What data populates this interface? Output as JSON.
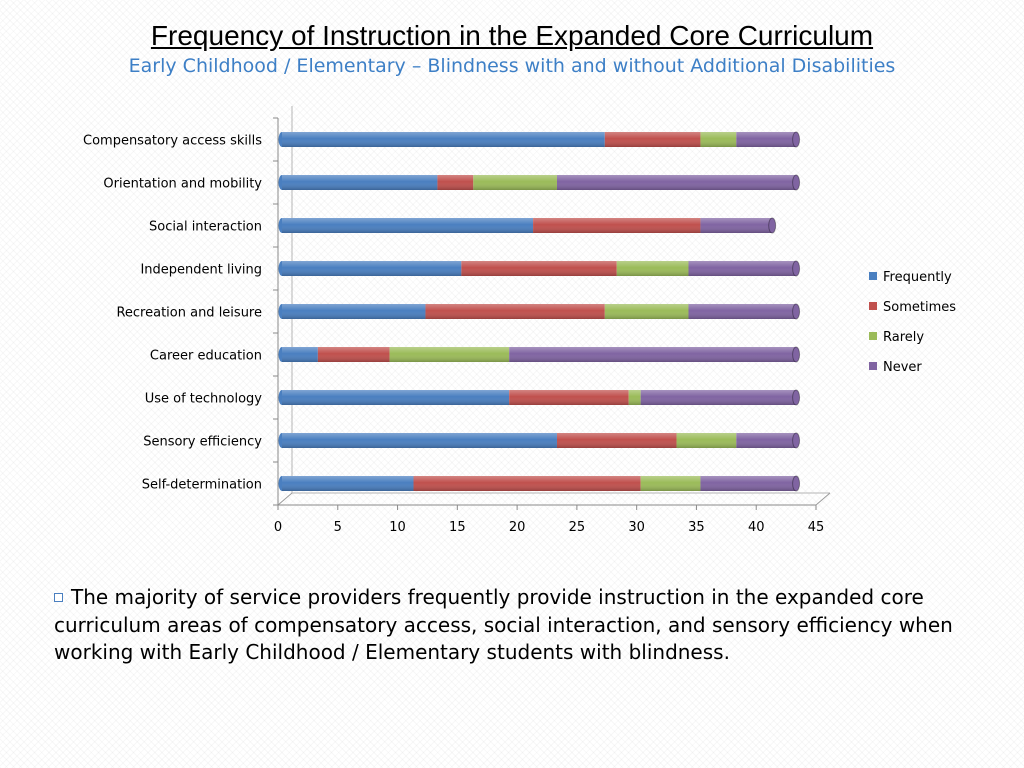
{
  "chart_data": {
    "type": "bar",
    "orientation": "horizontal",
    "stacked": true,
    "title": "Frequency of Instruction in the Expanded Core Curriculum",
    "subtitle": "Early Childhood / Elementary – Blindness with and without Additional Disabilities",
    "categories": [
      "Compensatory access skills",
      "Orientation and mobility",
      "Social interaction",
      "Independent living",
      "Recreation and leisure",
      "Career education",
      "Use of technology",
      "Sensory efficiency",
      "Self-determination"
    ],
    "series": [
      {
        "name": "Frequently",
        "color": "#4a7fc0",
        "values": [
          27,
          13,
          21,
          15,
          12,
          3,
          19,
          23,
          11
        ]
      },
      {
        "name": "Sometimes",
        "color": "#c0504d",
        "values": [
          8,
          3,
          14,
          13,
          15,
          6,
          10,
          10,
          19
        ]
      },
      {
        "name": "Rarely",
        "color": "#9bbb59",
        "values": [
          3,
          7,
          0,
          6,
          7,
          10,
          1,
          5,
          5
        ]
      },
      {
        "name": "Never",
        "color": "#8064a2",
        "values": [
          5,
          20,
          6,
          9,
          9,
          24,
          13,
          5,
          8
        ]
      }
    ],
    "xlim": [
      0,
      45
    ],
    "xticks": [
      "0",
      "5",
      "10",
      "15",
      "20",
      "25",
      "30",
      "35",
      "40",
      "45"
    ],
    "legend": "right",
    "grid": false
  },
  "caption": {
    "text": "The majority of service providers frequently provide instruction in the expanded core curriculum areas of compensatory access, social interaction, and sensory efficiency when working with Early Childhood / Elementary students with blindness."
  }
}
